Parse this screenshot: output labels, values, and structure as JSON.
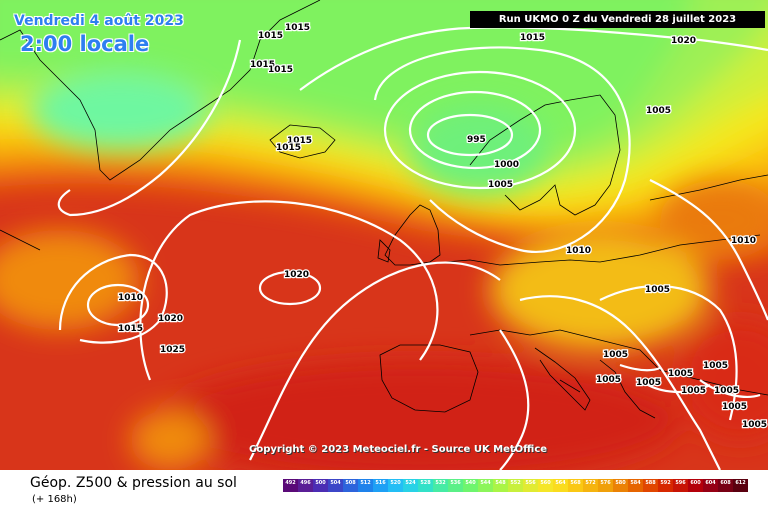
{
  "header": {
    "date": "Vendredi 4 août 2023",
    "time": "2:00 locale",
    "run": "Run UKMO 0 Z du Vendredi 28 juillet 2023"
  },
  "copyright": "Copyright © 2023 Meteociel.fr - Source UK MetOffice",
  "footer": {
    "title": "Géop. Z500 & pression au sol",
    "subtitle": "(+ 168h)"
  },
  "isobar_labels": [
    {
      "id": "l1",
      "text": "1015"
    },
    {
      "id": "l2",
      "text": "1015"
    },
    {
      "id": "l3",
      "text": "1015"
    },
    {
      "id": "l4",
      "text": "1015"
    },
    {
      "id": "l5",
      "text": "1015"
    },
    {
      "id": "l6",
      "text": "1015"
    },
    {
      "id": "l7",
      "text": "1015"
    },
    {
      "id": "l8",
      "text": "1020"
    },
    {
      "id": "l9",
      "text": "1005"
    },
    {
      "id": "l10",
      "text": "995"
    },
    {
      "id": "l11",
      "text": "1000"
    },
    {
      "id": "l12",
      "text": "1005"
    },
    {
      "id": "l13",
      "text": "1010"
    },
    {
      "id": "l14",
      "text": "1010"
    },
    {
      "id": "l15",
      "text": "1020"
    },
    {
      "id": "l16",
      "text": "1010"
    },
    {
      "id": "l17",
      "text": "1015"
    },
    {
      "id": "l18",
      "text": "1020"
    },
    {
      "id": "l19",
      "text": "1025"
    },
    {
      "id": "l20",
      "text": "1005"
    },
    {
      "id": "l21",
      "text": "1005"
    },
    {
      "id": "l22",
      "text": "1005"
    },
    {
      "id": "l23",
      "text": "1005"
    },
    {
      "id": "l24",
      "text": "1005"
    },
    {
      "id": "l25",
      "text": "1005"
    },
    {
      "id": "l26",
      "text": "1005"
    },
    {
      "id": "l27",
      "text": "1005"
    },
    {
      "id": "l28",
      "text": "1005"
    },
    {
      "id": "l29",
      "text": "1005"
    }
  ],
  "legend_scale": {
    "values": [
      "492",
      "496",
      "500",
      "504",
      "508",
      "512",
      "516",
      "520",
      "524",
      "528",
      "532",
      "536",
      "540",
      "544",
      "548",
      "552",
      "556",
      "560",
      "564",
      "568",
      "572",
      "576",
      "580",
      "584",
      "588",
      "592",
      "596",
      "600",
      "604",
      "608",
      "612"
    ],
    "colors": [
      "#5a0a78",
      "#5a1e96",
      "#4b2db4",
      "#3c46c8",
      "#2d64dc",
      "#1e82eb",
      "#1ea0f5",
      "#23bef5",
      "#28d2e6",
      "#32e1c8",
      "#46eba5",
      "#5af087",
      "#6ef56e",
      "#8cf55a",
      "#aaf546",
      "#c8f03c",
      "#e1eb32",
      "#f5e628",
      "#fadc1e",
      "#fac814",
      "#f5b40f",
      "#f0a00a",
      "#eb8205",
      "#e66400",
      "#e14600",
      "#d72800",
      "#c81405",
      "#b4000a",
      "#960014",
      "#780014",
      "#5a000f"
    ]
  }
}
